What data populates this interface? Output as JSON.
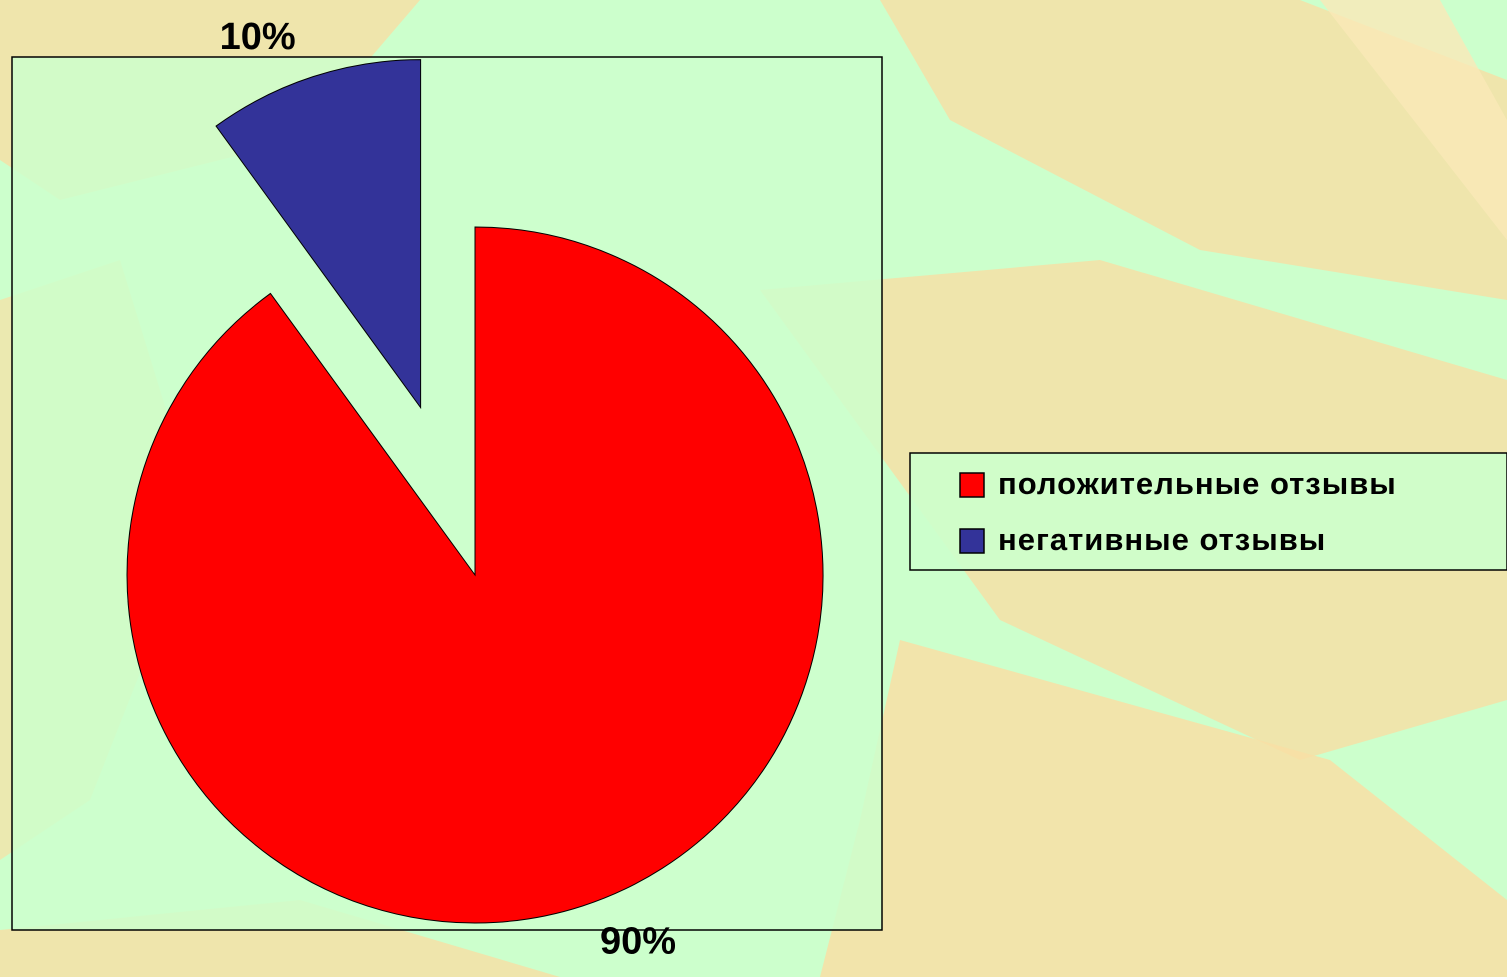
{
  "chart_data": {
    "type": "pie",
    "categories": [
      "положительные отзывы",
      "негативные отзывы"
    ],
    "values": [
      90,
      10
    ],
    "value_labels": [
      "90%",
      "10%"
    ],
    "colors": [
      "#ff0000",
      "#333399"
    ],
    "legend": "right"
  }
}
